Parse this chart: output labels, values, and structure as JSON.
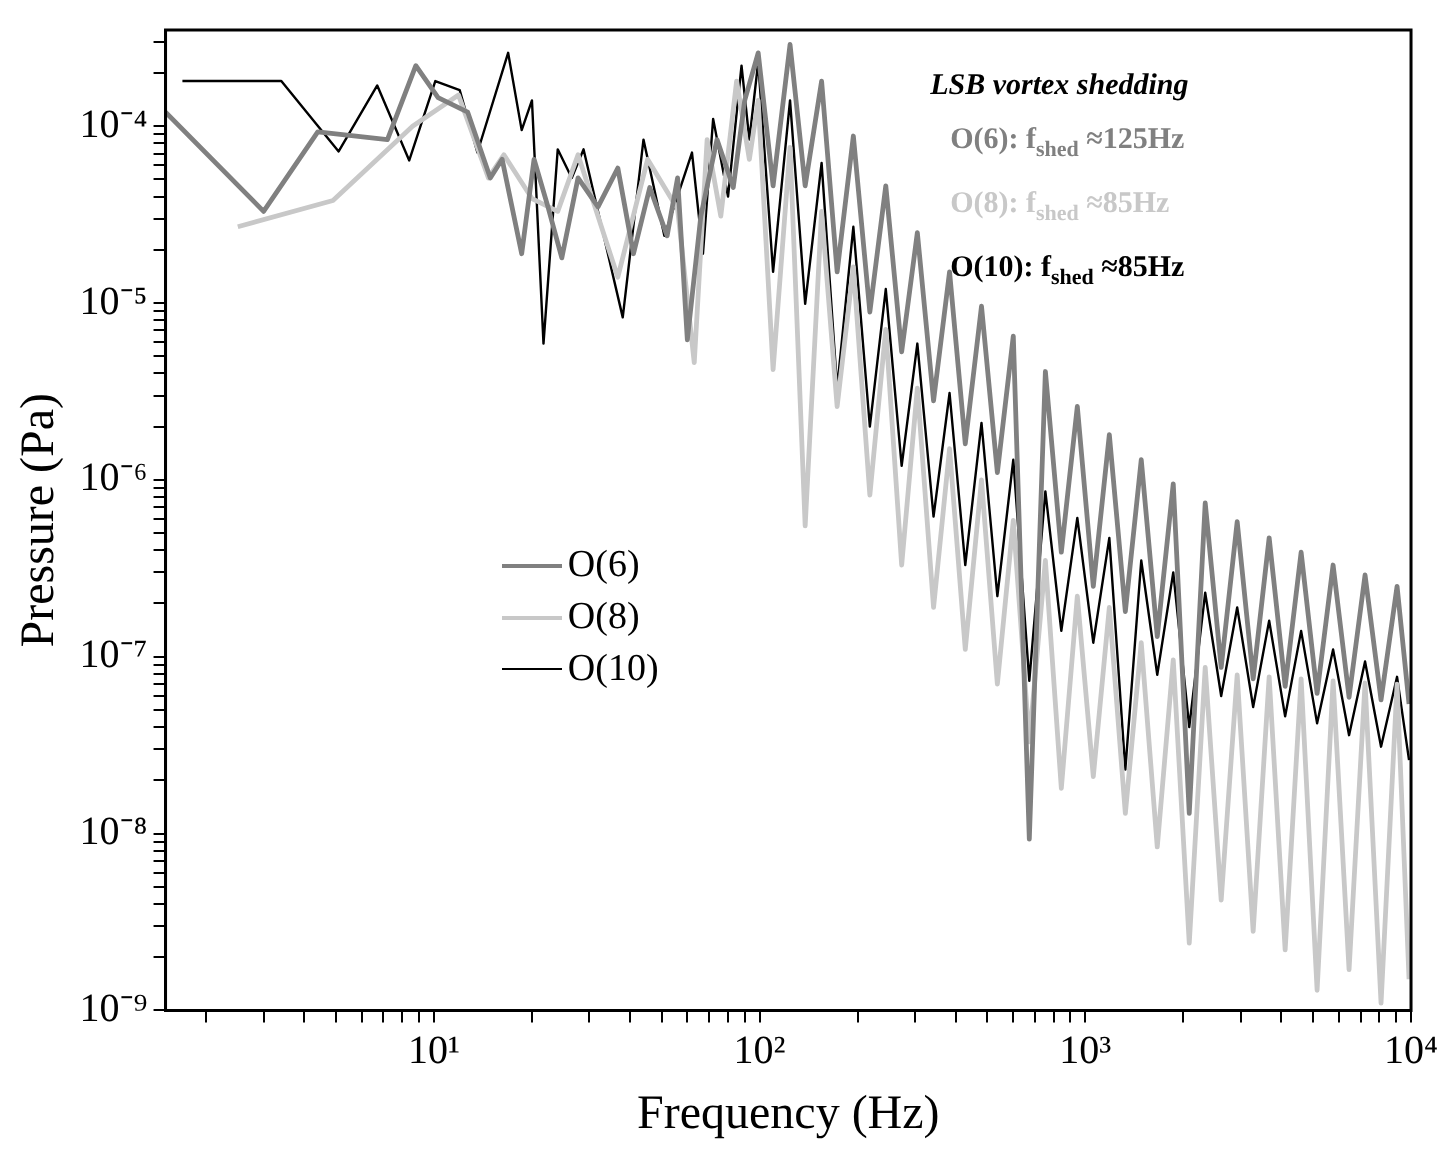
{
  "chart_data": {
    "type": "line",
    "xlabel": "Frequency (Hz)",
    "ylabel": "Pressure (Pa)",
    "log": "xy",
    "legend": "left",
    "grid": false,
    "xlim": [
      1.5,
      10000
    ],
    "ylim": [
      1e-09,
      0.00035
    ],
    "xticks": [
      {
        "value": 2,
        "label": null
      },
      {
        "value": 3,
        "label": null
      },
      {
        "value": 4,
        "label": null
      },
      {
        "value": 5,
        "label": null
      },
      {
        "value": 6,
        "label": null
      },
      {
        "value": 7,
        "label": null
      },
      {
        "value": 8,
        "label": null
      },
      {
        "value": 9,
        "label": null
      },
      {
        "value": 10,
        "label": "10¹"
      },
      {
        "value": 20,
        "label": null
      },
      {
        "value": 30,
        "label": null
      },
      {
        "value": 40,
        "label": null
      },
      {
        "value": 50,
        "label": null
      },
      {
        "value": 60,
        "label": null
      },
      {
        "value": 70,
        "label": null
      },
      {
        "value": 80,
        "label": null
      },
      {
        "value": 90,
        "label": null
      },
      {
        "value": 100,
        "label": "10²"
      },
      {
        "value": 200,
        "label": null
      },
      {
        "value": 300,
        "label": null
      },
      {
        "value": 400,
        "label": null
      },
      {
        "value": 500,
        "label": null
      },
      {
        "value": 600,
        "label": null
      },
      {
        "value": 700,
        "label": null
      },
      {
        "value": 800,
        "label": null
      },
      {
        "value": 900,
        "label": null
      },
      {
        "value": 1000,
        "label": "10³"
      },
      {
        "value": 2000,
        "label": null
      },
      {
        "value": 3000,
        "label": null
      },
      {
        "value": 4000,
        "label": null
      },
      {
        "value": 5000,
        "label": null
      },
      {
        "value": 6000,
        "label": null
      },
      {
        "value": 7000,
        "label": null
      },
      {
        "value": 8000,
        "label": null
      },
      {
        "value": 9000,
        "label": null
      },
      {
        "value": 10000,
        "label": "10⁴"
      }
    ],
    "yticks": [
      {
        "value": 1e-09,
        "label": "10⁻⁹"
      },
      {
        "value": 2e-09,
        "label": null
      },
      {
        "value": 3e-09,
        "label": null
      },
      {
        "value": 4e-09,
        "label": null
      },
      {
        "value": 5e-09,
        "label": null
      },
      {
        "value": 6e-09,
        "label": null
      },
      {
        "value": 7e-09,
        "label": null
      },
      {
        "value": 8e-09,
        "label": null
      },
      {
        "value": 9e-09,
        "label": null
      },
      {
        "value": 1e-08,
        "label": "10⁻⁸"
      },
      {
        "value": 2e-08,
        "label": null
      },
      {
        "value": 3e-08,
        "label": null
      },
      {
        "value": 4e-08,
        "label": null
      },
      {
        "value": 5e-08,
        "label": null
      },
      {
        "value": 6e-08,
        "label": null
      },
      {
        "value": 7e-08,
        "label": null
      },
      {
        "value": 8e-08,
        "label": null
      },
      {
        "value": 9e-08,
        "label": null
      },
      {
        "value": 1e-07,
        "label": "10⁻⁷"
      },
      {
        "value": 2e-07,
        "label": null
      },
      {
        "value": 3e-07,
        "label": null
      },
      {
        "value": 4e-07,
        "label": null
      },
      {
        "value": 5e-07,
        "label": null
      },
      {
        "value": 6e-07,
        "label": null
      },
      {
        "value": 7e-07,
        "label": null
      },
      {
        "value": 8e-07,
        "label": null
      },
      {
        "value": 9e-07,
        "label": null
      },
      {
        "value": 1e-06,
        "label": "10⁻⁶"
      },
      {
        "value": 2e-06,
        "label": null
      },
      {
        "value": 3e-06,
        "label": null
      },
      {
        "value": 4e-06,
        "label": null
      },
      {
        "value": 5e-06,
        "label": null
      },
      {
        "value": 6e-06,
        "label": null
      },
      {
        "value": 7e-06,
        "label": null
      },
      {
        "value": 8e-06,
        "label": null
      },
      {
        "value": 9e-06,
        "label": null
      },
      {
        "value": 1e-05,
        "label": "10⁻⁵"
      },
      {
        "value": 2e-05,
        "label": null
      },
      {
        "value": 3e-05,
        "label": null
      },
      {
        "value": 4e-05,
        "label": null
      },
      {
        "value": 5e-05,
        "label": null
      },
      {
        "value": 6e-05,
        "label": null
      },
      {
        "value": 7e-05,
        "label": null
      },
      {
        "value": 8e-05,
        "label": null
      },
      {
        "value": 9e-05,
        "label": null
      },
      {
        "value": 0.0001,
        "label": "10⁻⁴"
      },
      {
        "value": 0.0002,
        "label": null
      },
      {
        "value": 0.0003,
        "label": null
      }
    ],
    "series": [
      {
        "name": "O(6)",
        "color": "#808080",
        "x": [
          1.5,
          3,
          4.4,
          7.2,
          8.8,
          10.3,
          12.7,
          14.9,
          16.2,
          18.6,
          20.3,
          22.4,
          24.7,
          27.7,
          31.9,
          36.7,
          41,
          46,
          52,
          56,
          60,
          66,
          74,
          83,
          90,
          99,
          110,
          124,
          138,
          155,
          173,
          194,
          218,
          244,
          273,
          305,
          342,
          383,
          428,
          480,
          537,
          601,
          673,
          754,
          844,
          945,
          1058,
          1185,
          1327,
          1485,
          1663,
          1862,
          2085,
          2334,
          2613,
          2926,
          3276,
          3668,
          4107,
          4598,
          5148,
          5764,
          6453,
          7225,
          8090,
          9060,
          9860
        ],
        "values": [
          0.00012,
          3.3e-05,
          9.3e-05,
          8.4e-05,
          0.00022,
          0.000145,
          0.00012,
          5.1e-05,
          6.5e-05,
          1.9e-05,
          6.5e-05,
          3.5e-05,
          1.8e-05,
          5.1e-05,
          3.5e-05,
          5.8e-05,
          1.9e-05,
          4.5e-05,
          2.4e-05,
          5.1e-05,
          6.2e-06,
          3.1e-05,
          8.4e-05,
          4.5e-05,
          0.00014,
          0.00026,
          4.6e-05,
          0.00029,
          4.6e-05,
          0.00018,
          1.5e-05,
          8.8e-05,
          8.9e-06,
          4.6e-05,
          5.3e-06,
          2.5e-05,
          2.8e-06,
          1.5e-05,
          1.6e-06,
          9.6e-06,
          1.1e-06,
          6.5e-06,
          9.3e-09,
          4.1e-06,
          3.9e-07,
          2.6e-06,
          2.5e-07,
          1.8e-06,
          1.8e-07,
          1.3e-06,
          1.3e-07,
          9.5e-07,
          1.3e-08,
          7.4e-07,
          8.7e-08,
          5.8e-07,
          7.5e-08,
          4.7e-07,
          6.8e-08,
          3.9e-07,
          6.2e-08,
          3.3e-07,
          5.9e-08,
          2.9e-07,
          5.7e-08,
          2.5e-07,
          5.4e-08
        ]
      },
      {
        "name": "O(8)",
        "color": "#c8c8c8",
        "x": [
          2.5,
          4.9,
          8.6,
          11.9,
          14.7,
          16.4,
          20,
          24,
          27.7,
          36.7,
          45.3,
          56,
          63,
          69,
          76,
          85,
          93,
          99,
          110,
          124,
          138,
          155,
          173,
          194,
          218,
          244,
          273,
          305,
          342,
          383,
          428,
          480,
          537,
          601,
          673,
          754,
          844,
          945,
          1058,
          1185,
          1327,
          1485,
          1663,
          1862,
          2085,
          2334,
          2613,
          2926,
          3276,
          3668,
          4107,
          4598,
          5148,
          5764,
          6453,
          7225,
          8090,
          9060,
          9860
        ],
        "values": [
          2.7e-05,
          3.8e-05,
          0.0001,
          0.00015,
          5.1e-05,
          6.9e-05,
          3.9e-05,
          3.3e-05,
          6.9e-05,
          1.4e-05,
          6.5e-05,
          3.4e-05,
          4.6e-06,
          8.4e-05,
          3.1e-05,
          0.00018,
          6.5e-05,
          0.00014,
          4.2e-06,
          7.6e-05,
          5.5e-07,
          3.3e-05,
          2.6e-06,
          1.6e-05,
          8.2e-07,
          7.1e-06,
          3.3e-07,
          3.3e-06,
          1.9e-07,
          1.5e-06,
          1.1e-07,
          1e-06,
          7e-08,
          5.9e-07,
          3.3e-08,
          3.5e-07,
          1.8e-08,
          2.2e-07,
          2.1e-08,
          1.9e-07,
          1.3e-08,
          1.2e-07,
          8.4e-09,
          9.6e-08,
          2.4e-09,
          8.7e-08,
          4.2e-09,
          7.9e-08,
          2.8e-09,
          7.7e-08,
          2.2e-09,
          7.5e-08,
          1.3e-09,
          7.3e-08,
          1.7e-09,
          7.1e-08,
          1.1e-09,
          7e-08,
          1.5e-09
        ]
      },
      {
        "name": "O(10)",
        "color": "#000000",
        "x": [
          1.69,
          3.4,
          5.1,
          6.7,
          8.4,
          10.1,
          12,
          13.6,
          16.9,
          18.6,
          20,
          21.7,
          24,
          26.5,
          28.8,
          38,
          44,
          51,
          62,
          67,
          72,
          80,
          88,
          93,
          99,
          110,
          124,
          138,
          155,
          173,
          194,
          218,
          244,
          273,
          305,
          342,
          383,
          428,
          480,
          537,
          601,
          673,
          754,
          844,
          945,
          1058,
          1185,
          1327,
          1485,
          1663,
          1862,
          2085,
          2334,
          2613,
          2926,
          3276,
          3668,
          4107,
          4598,
          5148,
          5764,
          6453,
          7225,
          8090,
          9060,
          9860
        ],
        "values": [
          0.00018,
          0.00018,
          7.2e-05,
          0.00017,
          6.4e-05,
          0.00018,
          0.00016,
          7.1e-05,
          0.00026,
          9.5e-05,
          0.00014,
          5.9e-06,
          7.4e-05,
          5.1e-05,
          7.4e-05,
          8.3e-06,
          8.4e-05,
          2.4e-05,
          7.1e-05,
          1.9e-05,
          0.00011,
          4e-05,
          0.00022,
          8.4e-05,
          0.00023,
          1.5e-05,
          0.00014,
          9.9e-06,
          6.2e-05,
          3.3e-06,
          2.7e-05,
          2e-06,
          1.2e-05,
          1.2e-06,
          5.9e-06,
          6.2e-07,
          3.1e-06,
          3.3e-07,
          2.1e-06,
          2.2e-07,
          1.3e-06,
          7.3e-08,
          8.6e-07,
          1.4e-07,
          6.1e-07,
          1.2e-07,
          4.7e-07,
          2.3e-08,
          3.5e-07,
          7.9e-08,
          3e-07,
          4e-08,
          2.3e-07,
          6e-08,
          1.9e-07,
          5.2e-08,
          1.6e-07,
          4.6e-08,
          1.4e-07,
          4.2e-08,
          1.1e-07,
          3.6e-08,
          9.4e-08,
          3.1e-08,
          7.7e-08,
          2.6e-08
        ]
      }
    ],
    "annotations": [
      "LSB vortex shedding",
      "O(6): f$_{shed}$ ≈125Hz",
      "O(8): f$_{shed}$ ≈85Hz",
      "O(10): f$_{shed}$ ≈85Hz"
    ]
  }
}
